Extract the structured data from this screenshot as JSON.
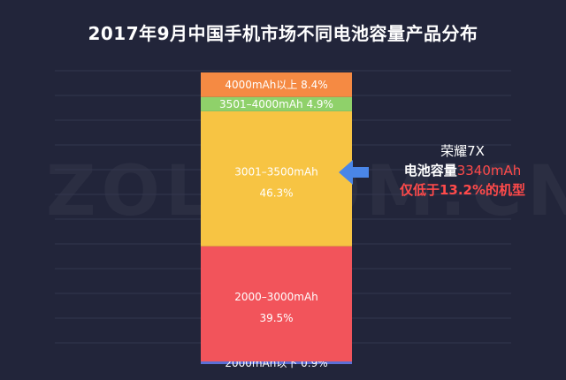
{
  "title": "2017年9月中国手机市场不同电池容量产品分布",
  "watermark": "ZOL.COM.CN",
  "annotation": {
    "device": "荣耀7X",
    "capacity_prefix": "电池容量",
    "capacity_value": "3340mAh",
    "comparison": "仅低于13.2%的机型"
  },
  "colors": {
    "background": "#22253a",
    "grid": "#33374d",
    "arrow": "#4a86e8",
    "highlight": "#ff4a4a"
  },
  "chart_data": {
    "type": "bar",
    "stacked": true,
    "orientation": "vertical",
    "unit": "%",
    "ylim": [
      0,
      100
    ],
    "grid": true,
    "series": [
      {
        "name": "2000mAh以下",
        "value": 0.9,
        "color": "#5b6fd6",
        "label": "2000mAh以下 0.9%"
      },
      {
        "name": "2000–3000mAh",
        "value": 39.5,
        "color": "#f2545b",
        "label_line1": "2000–3000mAh",
        "label_line2": "39.5%"
      },
      {
        "name": "3001–3500mAh",
        "value": 46.3,
        "color": "#f7c443",
        "label_line1": "3001–3500mAh",
        "label_line2": "46.3%"
      },
      {
        "name": "3501–4000mAh",
        "value": 4.9,
        "color": "#8fd16a",
        "label": "3501–4000mAh  4.9%"
      },
      {
        "name": "4000mAh以上",
        "value": 8.4,
        "color": "#f58a43",
        "label": "4000mAh以上  8.4%"
      }
    ]
  }
}
